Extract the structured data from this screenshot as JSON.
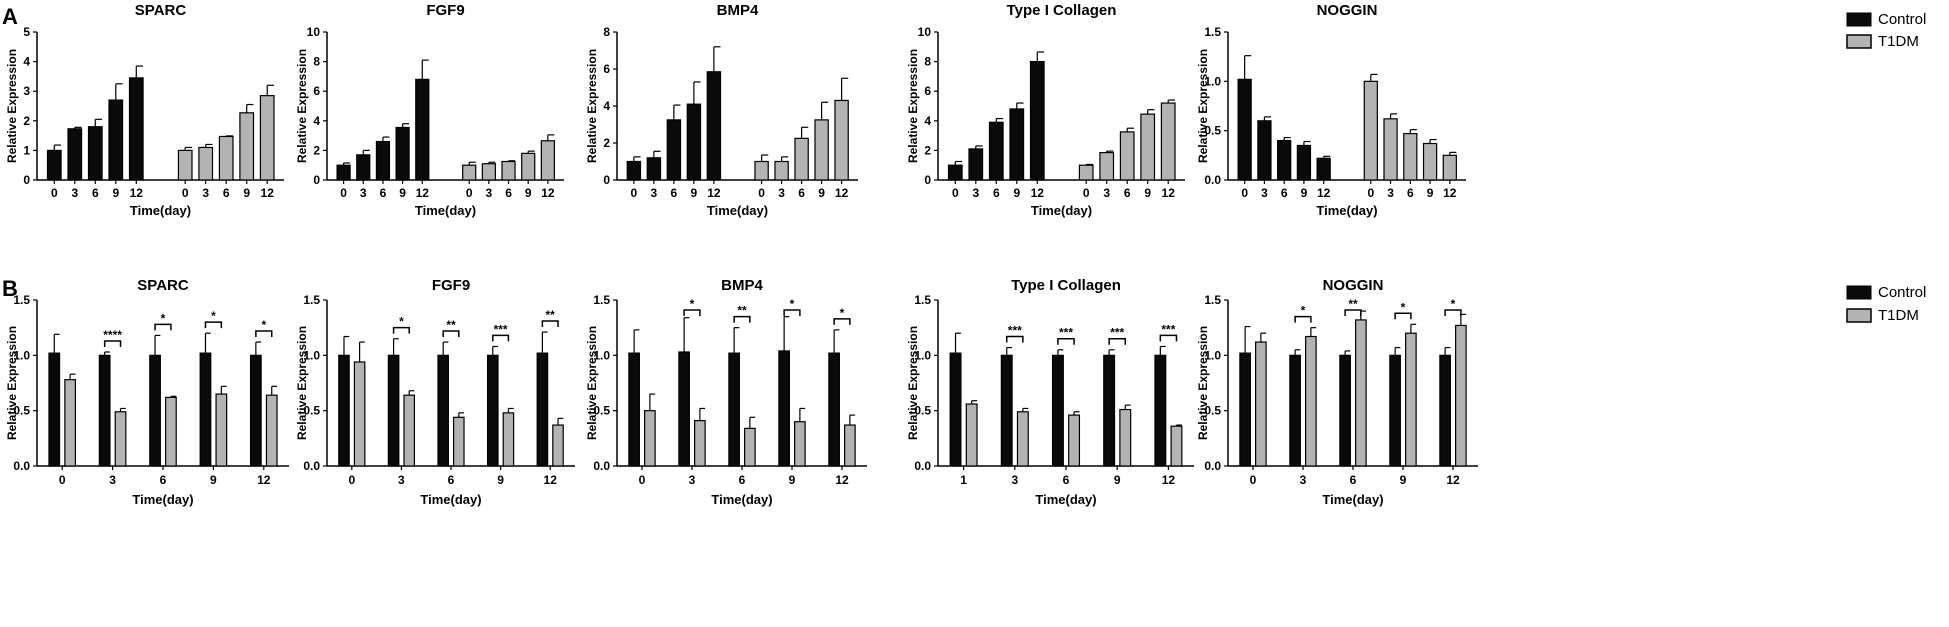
{
  "panel_labels": [
    "A",
    "B"
  ],
  "legend": {
    "control": "Control",
    "t1dm": "T1DM"
  },
  "colors": {
    "control": "#0a0a0a",
    "t1dm": "#b3b3b3",
    "axis": "#000000"
  },
  "chart_data": [
    {
      "panel": "A",
      "type": "bar",
      "title": "SPARC",
      "xlabel": "Time(day)",
      "ylabel": "Relative Expression",
      "ylim": [
        0,
        5
      ],
      "yticks": [
        "0",
        "1",
        "2",
        "3",
        "4",
        "5"
      ],
      "categories": [
        "0",
        "3",
        "6",
        "9",
        "12"
      ],
      "series": [
        {
          "name": "Control",
          "values": [
            1.0,
            1.73,
            1.8,
            2.7,
            3.45
          ],
          "errors": [
            0.18,
            0.05,
            0.25,
            0.55,
            0.4
          ]
        },
        {
          "name": "T1DM",
          "values": [
            1.0,
            1.1,
            1.47,
            2.27,
            2.85
          ],
          "errors": [
            0.1,
            0.1,
            0.02,
            0.28,
            0.35
          ]
        }
      ]
    },
    {
      "panel": "A",
      "type": "bar",
      "title": "FGF9",
      "xlabel": "Time(day)",
      "ylabel": "Relative Expression",
      "ylim": [
        0,
        10
      ],
      "yticks": [
        "0",
        "2",
        "4",
        "6",
        "8",
        "10"
      ],
      "categories": [
        "0",
        "3",
        "6",
        "9",
        "12"
      ],
      "series": [
        {
          "name": "Control",
          "values": [
            1.0,
            1.7,
            2.6,
            3.55,
            6.8
          ],
          "errors": [
            0.15,
            0.3,
            0.3,
            0.25,
            1.3
          ]
        },
        {
          "name": "T1DM",
          "values": [
            1.0,
            1.1,
            1.25,
            1.8,
            2.65
          ],
          "errors": [
            0.2,
            0.1,
            0.05,
            0.15,
            0.4
          ]
        }
      ]
    },
    {
      "panel": "A",
      "type": "bar",
      "title": "BMP4",
      "xlabel": "Time(day)",
      "ylabel": "Relative Expression",
      "ylim": [
        0,
        8
      ],
      "yticks": [
        "0",
        "2",
        "4",
        "6",
        "8"
      ],
      "categories": [
        "0",
        "3",
        "6",
        "9",
        "12"
      ],
      "series": [
        {
          "name": "Control",
          "values": [
            1.0,
            1.2,
            3.25,
            4.1,
            5.85
          ],
          "errors": [
            0.25,
            0.35,
            0.8,
            1.2,
            1.35
          ]
        },
        {
          "name": "T1DM",
          "values": [
            1.0,
            1.0,
            2.25,
            3.25,
            4.3
          ],
          "errors": [
            0.35,
            0.25,
            0.6,
            0.95,
            1.2
          ]
        }
      ]
    },
    {
      "panel": "A",
      "type": "bar",
      "title": "Type I Collagen",
      "xlabel": "Time(day)",
      "ylabel": "Relative Expression",
      "ylim": [
        0,
        10
      ],
      "yticks": [
        "0",
        "2",
        "4",
        "6",
        "8",
        "10"
      ],
      "categories": [
        "0",
        "3",
        "6",
        "9",
        "12"
      ],
      "series": [
        {
          "name": "Control",
          "values": [
            1.0,
            2.1,
            3.9,
            4.8,
            8.0
          ],
          "errors": [
            0.25,
            0.2,
            0.25,
            0.4,
            0.65
          ]
        },
        {
          "name": "T1DM",
          "values": [
            1.0,
            1.85,
            3.25,
            4.45,
            5.2
          ],
          "errors": [
            0.05,
            0.1,
            0.25,
            0.3,
            0.2
          ]
        }
      ]
    },
    {
      "panel": "A",
      "type": "bar",
      "title": "NOGGIN",
      "xlabel": "Time(day)",
      "ylabel": "Relative Expression",
      "ylim": [
        0,
        1.5
      ],
      "yticks": [
        "0.0",
        "0.5",
        "1.0",
        "1.5"
      ],
      "categories": [
        "0",
        "3",
        "6",
        "9",
        "12"
      ],
      "series": [
        {
          "name": "Control",
          "values": [
            1.02,
            0.6,
            0.4,
            0.35,
            0.22
          ],
          "errors": [
            0.24,
            0.04,
            0.03,
            0.04,
            0.02
          ]
        },
        {
          "name": "T1DM",
          "values": [
            1.0,
            0.62,
            0.47,
            0.37,
            0.25
          ],
          "errors": [
            0.07,
            0.05,
            0.04,
            0.04,
            0.03
          ]
        }
      ]
    },
    {
      "panel": "B",
      "type": "bar",
      "title": "SPARC",
      "xlabel": "Time(day)",
      "ylabel": "Relative Expression",
      "ylim": [
        0,
        1.5
      ],
      "yticks": [
        "0.0",
        "0.5",
        "1.0",
        "1.5"
      ],
      "categories": [
        "0",
        "3",
        "6",
        "9",
        "12"
      ],
      "series": [
        {
          "name": "Control",
          "values": [
            1.02,
            1.0,
            1.0,
            1.02,
            1.0
          ],
          "errors": [
            0.17,
            0.03,
            0.18,
            0.18,
            0.12
          ]
        },
        {
          "name": "T1DM",
          "values": [
            0.78,
            0.49,
            0.62,
            0.65,
            0.64
          ],
          "errors": [
            0.05,
            0.03,
            0.01,
            0.07,
            0.08
          ]
        }
      ],
      "significance": [
        "",
        "****",
        "*",
        "*",
        "*"
      ]
    },
    {
      "panel": "B",
      "type": "bar",
      "title": "FGF9",
      "xlabel": "Time(day)",
      "ylabel": "Relative Expression",
      "ylim": [
        0,
        1.5
      ],
      "yticks": [
        "0.0",
        "0.5",
        "1.0",
        "1.5"
      ],
      "categories": [
        "0",
        "3",
        "6",
        "9",
        "12"
      ],
      "series": [
        {
          "name": "Control",
          "values": [
            1.0,
            1.0,
            1.0,
            1.0,
            1.02
          ],
          "errors": [
            0.17,
            0.15,
            0.12,
            0.08,
            0.19
          ]
        },
        {
          "name": "T1DM",
          "values": [
            0.94,
            0.64,
            0.44,
            0.48,
            0.37
          ],
          "errors": [
            0.18,
            0.04,
            0.04,
            0.04,
            0.06
          ]
        }
      ],
      "significance": [
        "",
        "*",
        "**",
        "***",
        "**"
      ]
    },
    {
      "panel": "B",
      "type": "bar",
      "title": "BMP4",
      "xlabel": "Time(day)",
      "ylabel": "Relative Expression",
      "ylim": [
        0,
        1.5
      ],
      "yticks": [
        "0.0",
        "0.5",
        "1.0",
        "1.5"
      ],
      "categories": [
        "0",
        "3",
        "6",
        "9",
        "12"
      ],
      "series": [
        {
          "name": "Control",
          "values": [
            1.02,
            1.03,
            1.02,
            1.04,
            1.02
          ],
          "errors": [
            0.21,
            0.31,
            0.23,
            0.31,
            0.21
          ]
        },
        {
          "name": "T1DM",
          "values": [
            0.5,
            0.41,
            0.34,
            0.4,
            0.37
          ],
          "errors": [
            0.15,
            0.11,
            0.1,
            0.12,
            0.09
          ]
        }
      ],
      "significance": [
        "",
        "*",
        "**",
        "*",
        "*"
      ]
    },
    {
      "panel": "B",
      "type": "bar",
      "title": "Type I Collagen",
      "xlabel": "Time(day)",
      "ylabel": "Relative Expression",
      "ylim": [
        0,
        1.5
      ],
      "yticks": [
        "0.0",
        "0.5",
        "1.0",
        "1.5"
      ],
      "categories": [
        "1",
        "3",
        "6",
        "9",
        "12"
      ],
      "series": [
        {
          "name": "Control",
          "values": [
            1.02,
            1.0,
            1.0,
            1.0,
            1.0
          ],
          "errors": [
            0.18,
            0.07,
            0.05,
            0.05,
            0.08
          ]
        },
        {
          "name": "T1DM",
          "values": [
            0.56,
            0.49,
            0.46,
            0.51,
            0.36
          ],
          "errors": [
            0.03,
            0.03,
            0.03,
            0.04,
            0.01
          ]
        }
      ],
      "significance": [
        "",
        "***",
        "***",
        "***",
        "***"
      ]
    },
    {
      "panel": "B",
      "type": "bar",
      "title": "NOGGIN",
      "xlabel": "Time(day)",
      "ylabel": "Relative Expression",
      "ylim": [
        0,
        1.5
      ],
      "yticks": [
        "0.0",
        "0.5",
        "1.0",
        "1.5"
      ],
      "categories": [
        "0",
        "3",
        "6",
        "9",
        "12"
      ],
      "series": [
        {
          "name": "Control",
          "values": [
            1.02,
            1.0,
            1.0,
            1.0,
            1.0
          ],
          "errors": [
            0.24,
            0.05,
            0.04,
            0.07,
            0.07
          ]
        },
        {
          "name": "T1DM",
          "values": [
            1.12,
            1.17,
            1.32,
            1.2,
            1.27
          ],
          "errors": [
            0.08,
            0.08,
            0.08,
            0.08,
            0.1
          ]
        }
      ],
      "significance": [
        "",
        "*",
        "**",
        "*",
        "*"
      ]
    }
  ]
}
